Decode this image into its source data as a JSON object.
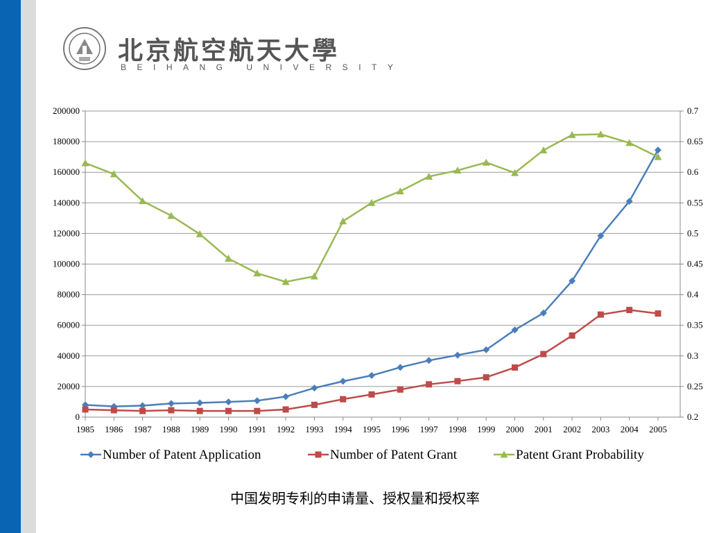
{
  "header": {
    "logo_cn": "北京航空航天大學",
    "logo_en": "BEIHANG UNIVERSITY",
    "seal_icon": "university-seal-icon"
  },
  "caption": "中国发明专利的申请量、授权量和授权率",
  "colors": {
    "application": "#4a7ebb",
    "grant": "#be4b48",
    "probability": "#98b954",
    "sidebar": "#0a64b4",
    "sidebar_light": "#dcdcdc"
  },
  "chart_data": {
    "type": "line",
    "categories": [
      "1985",
      "1986",
      "1987",
      "1988",
      "1989",
      "1990",
      "1991",
      "1992",
      "1993",
      "1994",
      "1995",
      "1996",
      "1997",
      "1998",
      "1999",
      "2000",
      "2001",
      "2002",
      "2003",
      "2004",
      "2005"
    ],
    "y_left": {
      "min": 0,
      "max": 200000,
      "ticks": [
        "0",
        "20000",
        "40000",
        "60000",
        "80000",
        "100000",
        "120000",
        "140000",
        "160000",
        "180000",
        "200000"
      ]
    },
    "y_right": {
      "min": 0.2,
      "max": 0.7,
      "ticks": [
        "0.2",
        "0.25",
        "0.3",
        "0.35",
        "0.4",
        "0.45",
        "0.5",
        "0.55",
        "0.6",
        "0.65",
        "0.7"
      ]
    },
    "grid": true,
    "legend_position": "bottom",
    "series": [
      {
        "name": "Number of Patent Application",
        "axis": "left",
        "marker": "diamond",
        "values": [
          8000,
          7000,
          7500,
          8900,
          9300,
          9900,
          10700,
          13400,
          19000,
          23400,
          27200,
          32500,
          37000,
          40500,
          44000,
          57000,
          68000,
          89000,
          118500,
          141000,
          174500
        ]
      },
      {
        "name": "Number of Patent Grant",
        "axis": "left",
        "marker": "square",
        "values": [
          5000,
          4500,
          4000,
          4500,
          4000,
          4000,
          4000,
          5000,
          8000,
          11700,
          14800,
          18000,
          21400,
          23500,
          26000,
          32400,
          41200,
          53300,
          67000,
          70000,
          67700
        ]
      },
      {
        "name": "Patent Grant Probability",
        "axis": "right",
        "marker": "triangle",
        "values": [
          0.615,
          0.597,
          0.553,
          0.529,
          0.499,
          0.459,
          0.435,
          0.421,
          0.43,
          0.52,
          0.55,
          0.569,
          0.593,
          0.603,
          0.616,
          0.599,
          0.636,
          0.661,
          0.662,
          0.648,
          0.625
        ]
      }
    ]
  }
}
